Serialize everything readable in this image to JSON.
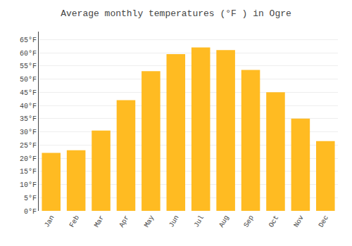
{
  "chart_data": {
    "type": "bar",
    "title": "Average monthly temperatures (°F ) in Ogre",
    "categories": [
      "Jan",
      "Feb",
      "Mar",
      "Apr",
      "May",
      "Jun",
      "Jul",
      "Aug",
      "Sep",
      "Oct",
      "Nov",
      "Dec"
    ],
    "values": [
      22,
      23,
      30.5,
      42,
      53,
      59.5,
      62,
      61,
      53.5,
      45,
      35,
      26.5
    ],
    "color": "#FFBB22",
    "ylim": [
      0,
      68
    ],
    "yticks": [
      {
        "value": 0,
        "label": "0°F"
      },
      {
        "value": 5,
        "label": "5°F"
      },
      {
        "value": 10,
        "label": "10°F"
      },
      {
        "value": 15,
        "label": "15°F"
      },
      {
        "value": 20,
        "label": "20°F"
      },
      {
        "value": 25,
        "label": "25°F"
      },
      {
        "value": 30,
        "label": "30°F"
      },
      {
        "value": 35,
        "label": "35°F"
      },
      {
        "value": 40,
        "label": "40°F"
      },
      {
        "value": 45,
        "label": "45°F"
      },
      {
        "value": 50,
        "label": "50°F"
      },
      {
        "value": 55,
        "label": "55°F"
      },
      {
        "value": 60,
        "label": "60°F"
      },
      {
        "value": 65,
        "label": "65°F"
      }
    ],
    "grid": true
  }
}
